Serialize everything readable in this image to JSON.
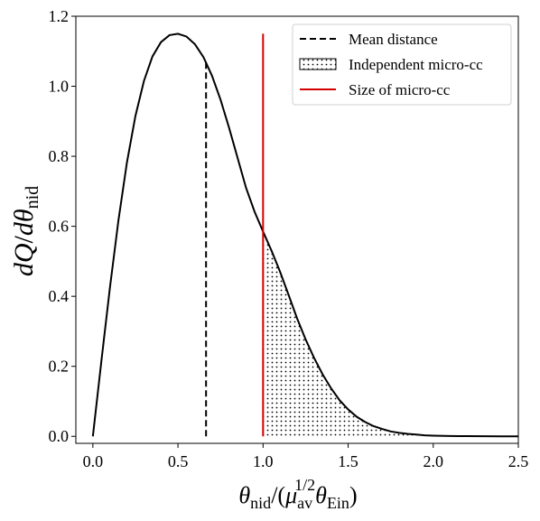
{
  "chart_data": {
    "type": "line",
    "xlabel": "θnid/(μav1/2θEin)",
    "ylabel": "dQ/dθnid",
    "xlim": [
      -0.1,
      2.5
    ],
    "ylim": [
      -0.02,
      1.2
    ],
    "xticks": [
      "0.0",
      "0.5",
      "1.0",
      "1.5",
      "2.0",
      "2.5"
    ],
    "yticks": [
      "0.0",
      "0.2",
      "0.4",
      "0.6",
      "0.8",
      "1.0",
      "1.2"
    ],
    "grid": false,
    "legend_position": "top-right",
    "series": [
      {
        "name": "dQ/dθnid curve",
        "style": "solid",
        "color": "#000000",
        "x": [
          0.0,
          0.05,
          0.1,
          0.15,
          0.2,
          0.25,
          0.3,
          0.35,
          0.4,
          0.45,
          0.5,
          0.55,
          0.6,
          0.65,
          0.7,
          0.75,
          0.8,
          0.85,
          0.9,
          0.95,
          1.0,
          1.05,
          1.1,
          1.15,
          1.2,
          1.25,
          1.3,
          1.35,
          1.4,
          1.45,
          1.5,
          1.55,
          1.6,
          1.65,
          1.7,
          1.75,
          1.8,
          1.85,
          1.9,
          1.95,
          2.0,
          2.1,
          2.2,
          2.3,
          2.4,
          2.5
        ],
        "y": [
          0.0,
          0.215,
          0.424,
          0.616,
          0.782,
          0.915,
          1.015,
          1.085,
          1.126,
          1.146,
          1.15,
          1.142,
          1.12,
          1.083,
          1.03,
          0.962,
          0.882,
          0.796,
          0.71,
          0.642,
          0.585,
          0.53,
          0.47,
          0.404,
          0.337,
          0.277,
          0.224,
          0.177,
          0.137,
          0.103,
          0.077,
          0.056,
          0.041,
          0.029,
          0.021,
          0.014,
          0.01,
          0.007,
          0.005,
          0.003,
          0.002,
          0.001,
          0.0005,
          0.0002,
          0.0001,
          0.0
        ]
      },
      {
        "name": "Mean distance",
        "style": "dashed",
        "color": "#000000",
        "x": [
          0.665,
          0.665
        ],
        "y": [
          0.0,
          1.07
        ]
      },
      {
        "name": "Size of micro-cc",
        "style": "solid",
        "color": "#d40000",
        "x": [
          1.0,
          1.0
        ],
        "y": [
          0.0,
          1.15
        ]
      }
    ],
    "shaded_region": {
      "name": "Independent micro-cc",
      "pattern": "dots",
      "x_from": 1.0,
      "x_to": 2.5
    },
    "legend": [
      {
        "label": "Mean distance",
        "style": "dashed",
        "color": "#000000"
      },
      {
        "label": "Independent micro-cc",
        "style": "dots",
        "color": "#000000"
      },
      {
        "label": "Size of micro-cc",
        "style": "solid",
        "color": "#d40000"
      }
    ]
  }
}
